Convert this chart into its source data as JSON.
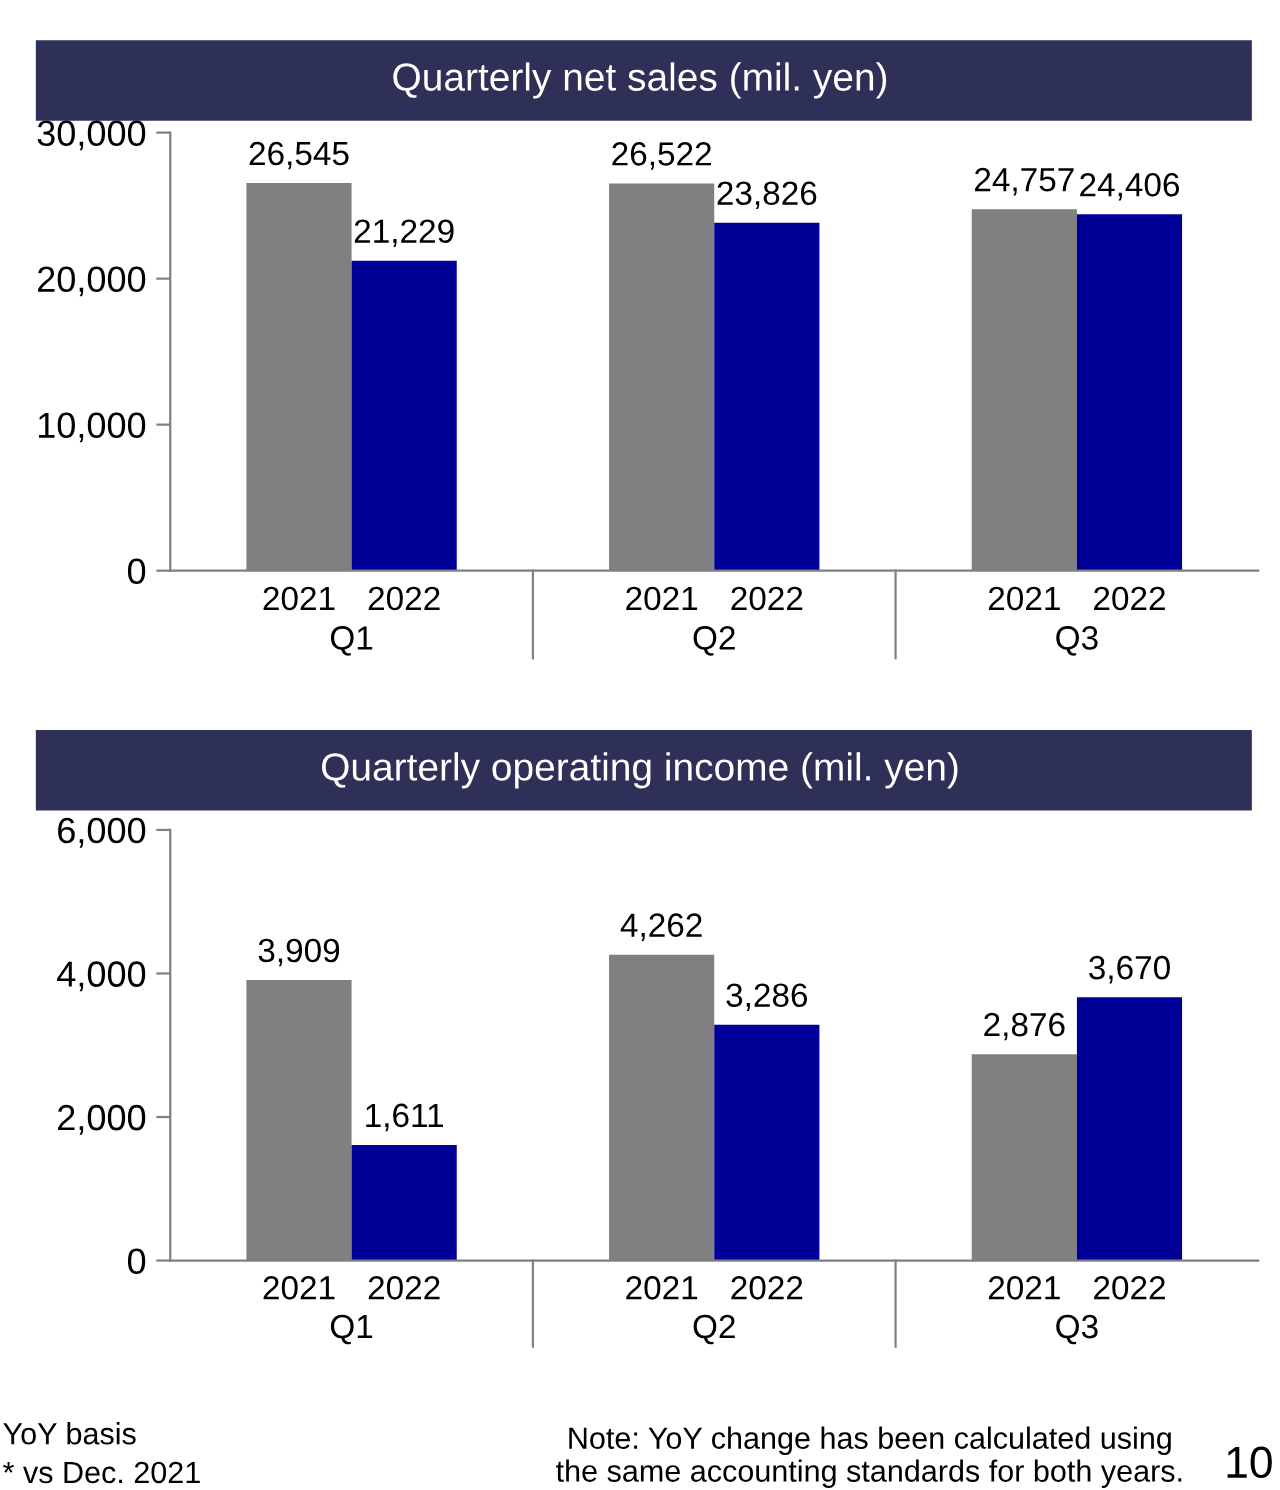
{
  "chart_data": [
    {
      "type": "bar",
      "title": "Quarterly net sales (mil. yen)",
      "categories": [
        "Q1",
        "Q2",
        "Q3"
      ],
      "series": [
        {
          "name": "2021",
          "color": "#808080",
          "values": [
            26545,
            26522,
            24757
          ],
          "value_labels": [
            "26,545",
            "26,522",
            "24,757"
          ]
        },
        {
          "name": "2022",
          "color": "#000099",
          "values": [
            21229,
            23826,
            24406
          ],
          "value_labels": [
            "21,229",
            "23,826",
            "24,406"
          ]
        }
      ],
      "ylim": [
        0,
        30000
      ],
      "yticks": [
        {
          "value": 0,
          "label": "0"
        },
        {
          "value": 10000,
          "label": "10,000"
        },
        {
          "value": 20000,
          "label": "20,000"
        },
        {
          "value": 30000,
          "label": "30,000"
        }
      ]
    },
    {
      "type": "bar",
      "title": "Quarterly operating income (mil. yen)",
      "categories": [
        "Q1",
        "Q2",
        "Q3"
      ],
      "series": [
        {
          "name": "2021",
          "color": "#808080",
          "values": [
            3909,
            4262,
            2876
          ],
          "value_labels": [
            "3,909",
            "4,262",
            "2,876"
          ]
        },
        {
          "name": "2022",
          "color": "#000099",
          "values": [
            1611,
            3286,
            3670
          ],
          "value_labels": [
            "1,611",
            "3,286",
            "3,670"
          ]
        }
      ],
      "ylim": [
        0,
        6000
      ],
      "yticks": [
        {
          "value": 0,
          "label": "0"
        },
        {
          "value": 2000,
          "label": "2,000"
        },
        {
          "value": 4000,
          "label": "4,000"
        },
        {
          "value": 6000,
          "label": "6,000"
        }
      ],
      "annotations": [
        "YoY basis",
        "* vs Dec. 2021",
        "Note: YoY change has been calculated using\nthe same accounting standards for both years.",
        "10"
      ]
    }
  ]
}
